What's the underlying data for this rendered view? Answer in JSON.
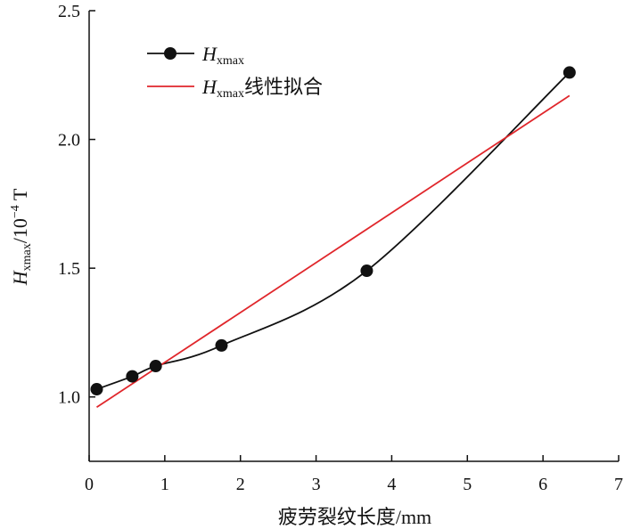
{
  "chart_data": {
    "type": "scatter",
    "x_range": [
      0,
      7
    ],
    "y_range": [
      0.75,
      2.5
    ],
    "x_ticks": [
      0,
      1,
      2,
      3,
      4,
      5,
      6,
      7
    ],
    "y_ticks": [
      1.0,
      1.5,
      2.0,
      2.5
    ],
    "x_tick_labels": [
      "0",
      "1",
      "2",
      "3",
      "4",
      "5",
      "6",
      "7"
    ],
    "y_tick_labels": [
      "1.0",
      "1.5",
      "2.0",
      "2.5"
    ],
    "xlabel": "疲劳裂纹长度/mm",
    "ylabel": {
      "main": "H",
      "sub": "xmax",
      "unit_prefix": "/10",
      "exponent": "−4",
      "unit": " T"
    },
    "grid": false,
    "legend_position": "top-left",
    "series": [
      {
        "name_main": "H",
        "name_sub": "xmax",
        "name_suffix": "",
        "kind": "points+curve",
        "color": "#111111",
        "points": [
          {
            "x": 0.1,
            "y": 1.03
          },
          {
            "x": 0.57,
            "y": 1.08
          },
          {
            "x": 0.88,
            "y": 1.12
          },
          {
            "x": 1.75,
            "y": 1.2
          },
          {
            "x": 3.67,
            "y": 1.49
          },
          {
            "x": 6.35,
            "y": 2.26
          }
        ]
      },
      {
        "name_main": "H",
        "name_sub": "xmax",
        "name_suffix": "线性拟合",
        "kind": "line",
        "color": "#e0262b",
        "points": [
          {
            "x": 0.1,
            "y": 0.96
          },
          {
            "x": 6.35,
            "y": 2.17
          }
        ]
      }
    ]
  }
}
